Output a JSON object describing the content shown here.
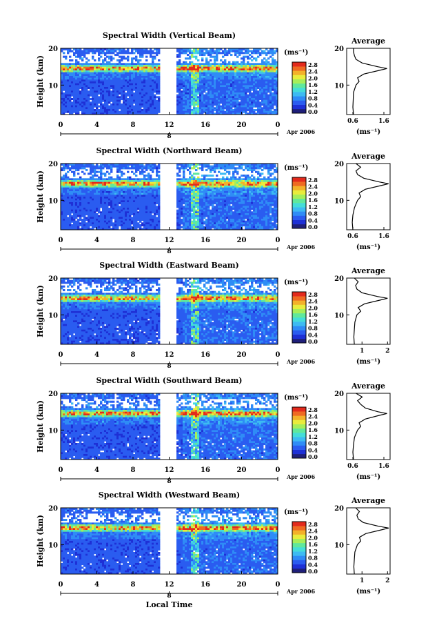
{
  "figure": {
    "xlabel": "Local Time",
    "date_label": "Apr 2006",
    "day_marker": "8",
    "colorbar_unit": "(ms⁻¹)",
    "colorbar_ticks": [
      "0.0",
      "0.4",
      "0.8",
      "1.2",
      "1.6",
      "2.0",
      "2.4",
      "2.8"
    ],
    "profile_title": "Average",
    "profile_xlabel": "(ms⁻¹)"
  },
  "colors": {
    "scale": [
      "#1f1f7a",
      "#1e30d6",
      "#2a5cf0",
      "#2f8cf6",
      "#3dbbf2",
      "#44ddd8",
      "#60e89c",
      "#a6ee5a",
      "#e9ec3c",
      "#f3b12a",
      "#ef6a22",
      "#e32a1c"
    ],
    "nodata": "#ffffff"
  },
  "chart_data": [
    {
      "type": "heatmap",
      "title": "Spectral Width (Vertical Beam)",
      "ylabel": "Height (km)",
      "xlim": [
        0,
        24
      ],
      "ylim": [
        2,
        20
      ],
      "xticks": [
        "0",
        "4",
        "8",
        "12",
        "16",
        "20",
        "0"
      ],
      "yticks": [
        10,
        20
      ],
      "gap_hours": [
        11,
        12.7
      ],
      "layer_peak_height_km": 14.5,
      "cbar_range": [
        0,
        3
      ],
      "profile": {
        "xlim": [
          0.4,
          1.8
        ],
        "xticks": [
          "0.6",
          "1.6"
        ],
        "xtick_values": [
          0.6,
          1.6
        ],
        "height_km": [
          2,
          4,
          6,
          8,
          10,
          11,
          12,
          13,
          14,
          14.5,
          15,
          16,
          17,
          18,
          19,
          20
        ],
        "mean_ms": [
          0.62,
          0.6,
          0.61,
          0.62,
          0.7,
          0.8,
          0.75,
          0.95,
          1.45,
          1.7,
          1.4,
          0.9,
          0.7,
          0.65,
          0.62,
          0.62
        ]
      }
    },
    {
      "type": "heatmap",
      "title": "Spectral Width (Northward Beam)",
      "ylabel": "Height (km)",
      "xlim": [
        0,
        24
      ],
      "ylim": [
        2,
        20
      ],
      "xticks": [
        "0",
        "4",
        "8",
        "12",
        "16",
        "20",
        "0"
      ],
      "yticks": [
        10,
        20
      ],
      "gap_hours": [
        11,
        12.7
      ],
      "layer_peak_height_km": 14.5,
      "cbar_range": [
        0,
        3
      ],
      "profile": {
        "xlim": [
          0.4,
          1.8
        ],
        "xticks": [
          "0.6",
          "1.6"
        ],
        "xtick_values": [
          0.6,
          1.6
        ],
        "height_km": [
          2,
          4,
          6,
          8,
          10,
          11,
          12,
          13,
          14,
          14.5,
          15,
          16,
          17,
          18,
          19,
          20
        ],
        "mean_ms": [
          0.6,
          0.58,
          0.6,
          0.65,
          0.75,
          0.85,
          0.8,
          1.0,
          1.5,
          1.75,
          1.45,
          0.95,
          0.75,
          0.7,
          0.85,
          0.7
        ]
      }
    },
    {
      "type": "heatmap",
      "title": "Spectral Width (Eastward Beam)",
      "ylabel": "Height (km)",
      "xlim": [
        0,
        24
      ],
      "ylim": [
        2,
        20
      ],
      "xticks": [
        "0",
        "4",
        "8",
        "12",
        "16",
        "20",
        "0"
      ],
      "yticks": [
        10,
        20
      ],
      "gap_hours": [
        11,
        12.7
      ],
      "layer_peak_height_km": 14.5,
      "cbar_range": [
        0,
        3
      ],
      "profile": {
        "xlim": [
          0.4,
          2.1
        ],
        "xticks": [
          "1",
          "2"
        ],
        "xtick_values": [
          1,
          2
        ],
        "height_km": [
          2,
          4,
          6,
          8,
          10,
          11,
          12,
          13,
          14,
          14.5,
          15,
          16,
          17,
          18,
          19,
          20
        ],
        "mean_ms": [
          0.7,
          0.68,
          0.7,
          0.72,
          0.8,
          0.95,
          0.85,
          1.1,
          1.7,
          2.0,
          1.6,
          1.0,
          0.8,
          0.75,
          0.85,
          0.7
        ]
      }
    },
    {
      "type": "heatmap",
      "title": "Spectral Width (Southward Beam)",
      "ylabel": "Height (km)",
      "xlim": [
        0,
        24
      ],
      "ylim": [
        2,
        20
      ],
      "xticks": [
        "0",
        "4",
        "8",
        "12",
        "16",
        "20",
        "0"
      ],
      "yticks": [
        10,
        20
      ],
      "gap_hours": [
        11,
        12.7
      ],
      "layer_peak_height_km": 14.5,
      "cbar_range": [
        0,
        3
      ],
      "profile": {
        "xlim": [
          0.4,
          1.8
        ],
        "xticks": [
          "0.6",
          "1.6"
        ],
        "xtick_values": [
          0.6,
          1.6
        ],
        "height_km": [
          2,
          4,
          6,
          8,
          10,
          11,
          12,
          13,
          14,
          14.5,
          15,
          16,
          17,
          18,
          19,
          20
        ],
        "mean_ms": [
          0.62,
          0.6,
          0.62,
          0.65,
          0.75,
          0.85,
          0.8,
          1.0,
          1.45,
          1.7,
          1.4,
          1.0,
          0.85,
          0.75,
          0.9,
          0.7
        ]
      }
    },
    {
      "type": "heatmap",
      "title": "Spectral Width (Westward Beam)",
      "ylabel": "Height (km)",
      "xlim": [
        0,
        24
      ],
      "ylim": [
        2,
        20
      ],
      "xticks": [
        "0",
        "4",
        "8",
        "12",
        "16",
        "20",
        "0"
      ],
      "yticks": [
        10,
        20
      ],
      "gap_hours": [
        11,
        12.7
      ],
      "layer_peak_height_km": 14.5,
      "cbar_range": [
        0,
        3
      ],
      "profile": {
        "xlim": [
          0.4,
          2.1
        ],
        "xticks": [
          "1",
          "2"
        ],
        "xtick_values": [
          1,
          2
        ],
        "height_km": [
          2,
          4,
          6,
          8,
          10,
          11,
          12,
          13,
          14,
          14.5,
          15,
          16,
          17,
          18,
          19,
          20
        ],
        "mean_ms": [
          0.7,
          0.68,
          0.7,
          0.72,
          0.82,
          0.95,
          0.9,
          1.15,
          1.75,
          2.05,
          1.65,
          1.05,
          0.85,
          0.8,
          0.9,
          0.75
        ]
      }
    }
  ]
}
